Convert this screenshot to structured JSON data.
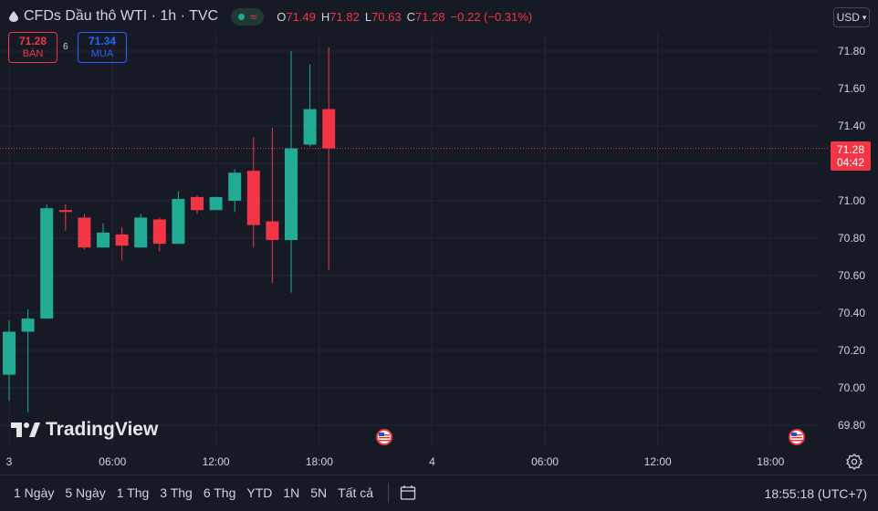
{
  "header": {
    "symbol_title": "CFDs Dầu thô WTI · 1h · TVC",
    "ohlc": {
      "o_label": "O",
      "o_value": "71.49",
      "h_label": "H",
      "h_value": "71.82",
      "l_label": "L",
      "l_value": "70.63",
      "c_label": "C",
      "c_value": "71.28",
      "change": "−0.22 (−0.31%)"
    },
    "status_wave_symbol": "≈",
    "currency": "USD"
  },
  "quote": {
    "sell_price": "71.28",
    "sell_label": "BÁN",
    "spread": "6",
    "buy_price": "71.34",
    "buy_label": "MUA"
  },
  "price_tag": {
    "price": "71.28",
    "countdown": "04:42"
  },
  "logo_text": "TradingView",
  "bottom_bar": {
    "ranges": [
      "1 Ngày",
      "5 Ngày",
      "1 Thg",
      "3 Thg",
      "6 Thg",
      "YTD",
      "1N",
      "5N",
      "Tất cả"
    ],
    "clock": "18:55:18 (UTC+7)"
  },
  "colors": {
    "up": "#22ab94",
    "down": "#f23645",
    "background": "#161a25",
    "grid": "#232632",
    "text": "#d1d4dc"
  },
  "icons": [
    "oil-drop-icon",
    "market-status-dot-icon",
    "chevron-down-icon",
    "calendar-range-icon",
    "us-flag-event-icon",
    "settings-gear-icon",
    "tradingview-logo-icon"
  ],
  "chart_data": {
    "type": "candlestick",
    "title": "CFDs Dầu thô WTI · 1h · TVC",
    "x_tick_labels": [
      "3",
      "06:00",
      "12:00",
      "18:00",
      "4",
      "06:00",
      "12:00",
      "18:00"
    ],
    "y_tick_labels": [
      "71.80",
      "71.60",
      "71.40",
      "71.20",
      "71.00",
      "70.80",
      "70.60",
      "70.40",
      "70.20",
      "70.00",
      "69.80"
    ],
    "ylim": [
      69.78,
      71.84
    ],
    "grid": true,
    "last_price": 71.28,
    "candles": [
      {
        "o": 70.07,
        "h": 70.36,
        "l": 69.93,
        "c": 70.3
      },
      {
        "o": 70.3,
        "h": 70.42,
        "l": 69.87,
        "c": 70.37
      },
      {
        "o": 70.37,
        "h": 70.98,
        "l": 70.37,
        "c": 70.96
      },
      {
        "o": 70.95,
        "h": 70.98,
        "l": 70.84,
        "c": 70.94
      },
      {
        "o": 70.91,
        "h": 70.93,
        "l": 70.74,
        "c": 70.75
      },
      {
        "o": 70.75,
        "h": 70.88,
        "l": 70.75,
        "c": 70.83
      },
      {
        "o": 70.82,
        "h": 70.86,
        "l": 70.68,
        "c": 70.76
      },
      {
        "o": 70.75,
        "h": 70.93,
        "l": 70.75,
        "c": 70.91
      },
      {
        "o": 70.9,
        "h": 70.91,
        "l": 70.73,
        "c": 70.77
      },
      {
        "o": 70.77,
        "h": 71.05,
        "l": 70.77,
        "c": 71.01
      },
      {
        "o": 71.02,
        "h": 71.03,
        "l": 70.93,
        "c": 70.95
      },
      {
        "o": 70.95,
        "h": 71.02,
        "l": 70.95,
        "c": 71.02
      },
      {
        "o": 71.0,
        "h": 71.17,
        "l": 70.94,
        "c": 71.15
      },
      {
        "o": 71.16,
        "h": 71.34,
        "l": 70.75,
        "c": 70.87
      },
      {
        "o": 70.89,
        "h": 71.39,
        "l": 70.56,
        "c": 70.79
      },
      {
        "o": 70.79,
        "h": 71.8,
        "l": 70.51,
        "c": 71.28
      },
      {
        "o": 71.3,
        "h": 71.73,
        "l": 71.29,
        "c": 71.49
      },
      {
        "o": 71.49,
        "h": 71.82,
        "l": 70.63,
        "c": 71.28
      }
    ],
    "events": [
      {
        "type": "economic-event",
        "country": "US"
      },
      {
        "type": "economic-event",
        "country": "US"
      }
    ]
  }
}
